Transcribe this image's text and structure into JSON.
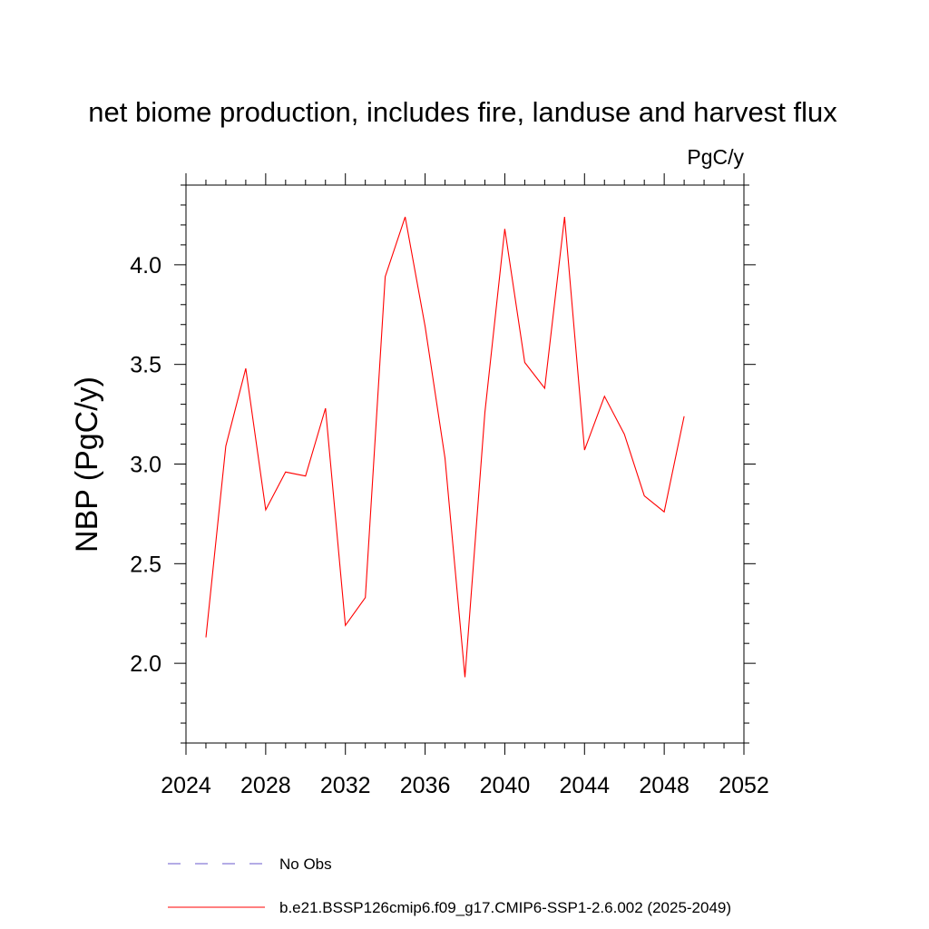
{
  "chart_data": {
    "type": "line",
    "title": "net biome production, includes fire, landuse and harvest flux",
    "units_label": "PgC/y",
    "ylabel": "NBP  (PgC/y)",
    "xlabel": "",
    "xlim": [
      2024,
      2052
    ],
    "ylim": [
      1.6,
      4.4
    ],
    "x_ticks": [
      2024,
      2028,
      2032,
      2036,
      2040,
      2044,
      2048,
      2052
    ],
    "y_ticks": [
      2.0,
      2.5,
      3.0,
      3.5,
      4.0
    ],
    "x_tick_labels": [
      "2024",
      "2028",
      "2032",
      "2036",
      "2040",
      "2044",
      "2048",
      "2052"
    ],
    "y_tick_labels": [
      "2.0",
      "2.5",
      "3.0",
      "3.5",
      "4.0"
    ],
    "grid": false,
    "legend_position": "bottom",
    "series": [
      {
        "name": "b.e21.BSSP126cmip6.f09_g17.CMIP6-SSP1-2.6.002 (2025-2049)",
        "color": "#ff0000",
        "style": "solid",
        "x": [
          2025,
          2026,
          2027,
          2028,
          2029,
          2030,
          2031,
          2032,
          2033,
          2034,
          2035,
          2036,
          2037,
          2038,
          2039,
          2040,
          2041,
          2042,
          2043,
          2044,
          2045,
          2046,
          2047,
          2048,
          2049
        ],
        "y": [
          2.13,
          3.09,
          3.48,
          2.77,
          2.96,
          2.94,
          3.28,
          2.19,
          2.33,
          3.94,
          4.24,
          3.69,
          3.03,
          1.93,
          3.26,
          4.18,
          3.51,
          3.38,
          4.24,
          3.07,
          3.34,
          3.15,
          2.84,
          2.76,
          3.24
        ]
      }
    ],
    "legend": [
      {
        "label": "No Obs",
        "color": "#6a5acd",
        "style": "dashed"
      },
      {
        "label": "b.e21.BSSP126cmip6.f09_g17.CMIP6-SSP1-2.6.002 (2025-2049)",
        "color": "#ff0000",
        "style": "solid"
      }
    ]
  }
}
